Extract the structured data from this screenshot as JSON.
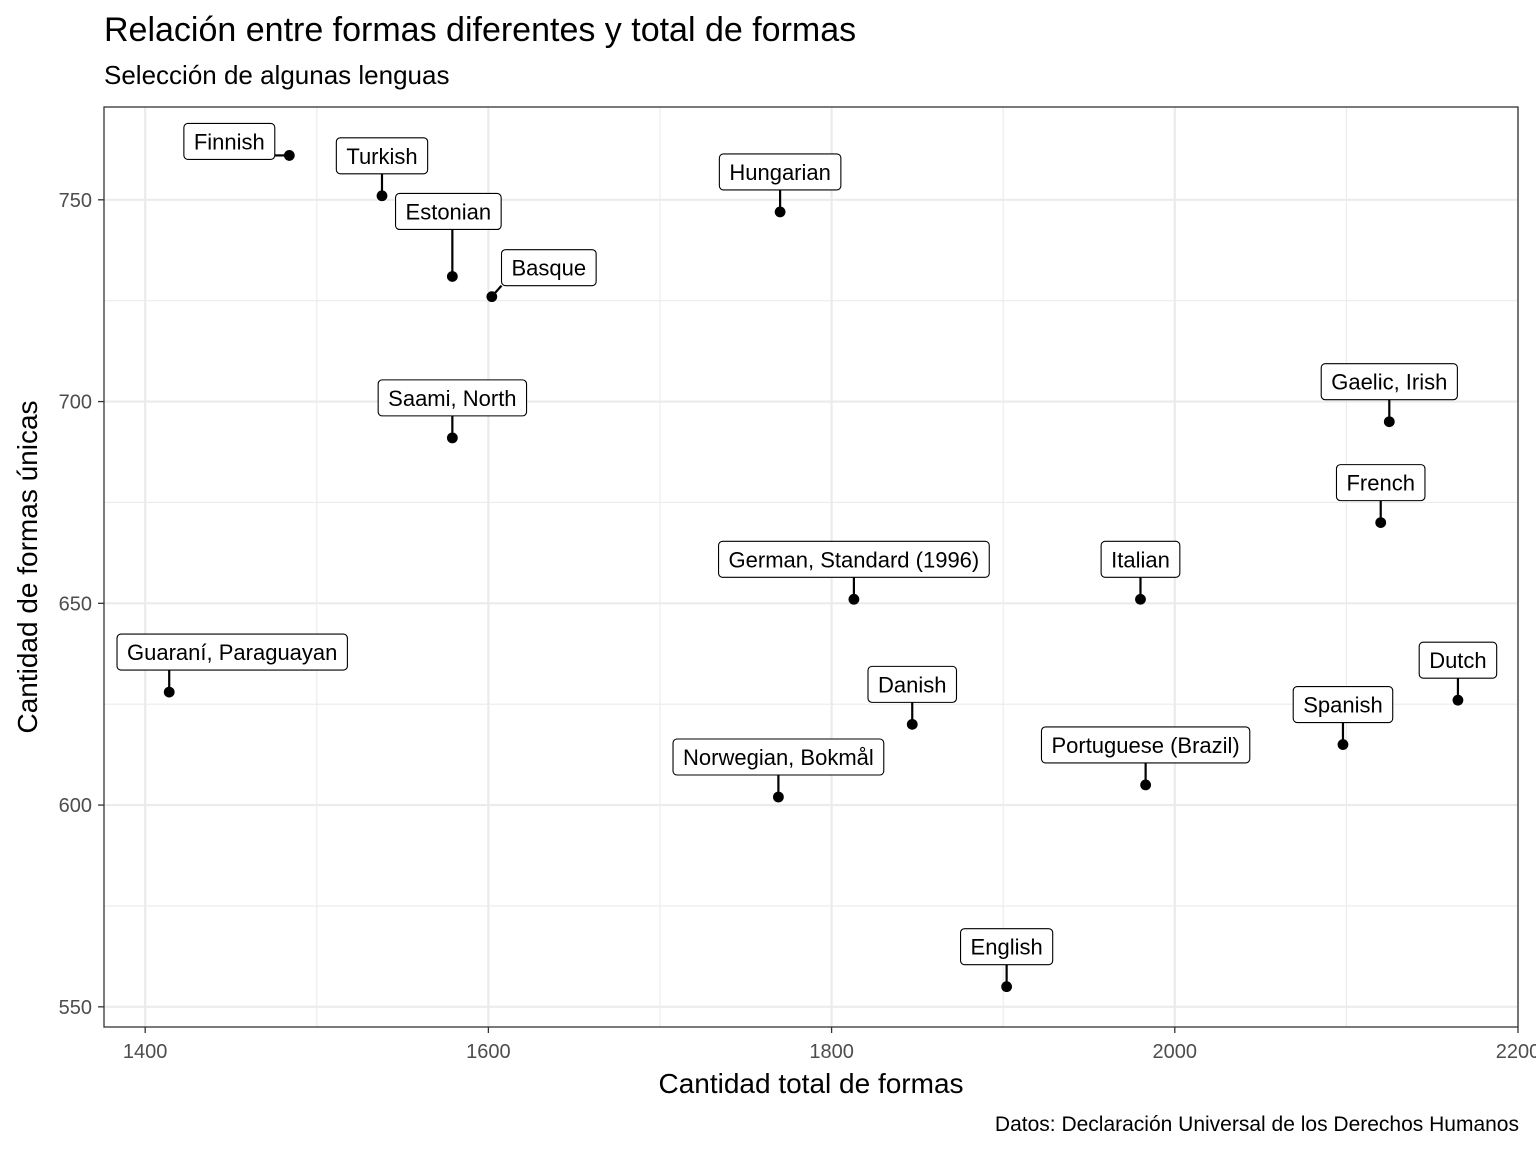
{
  "chart_data": {
    "type": "scatter",
    "title": "Relación entre formas diferentes y total de formas",
    "subtitle": "Selección de algunas lenguas",
    "xlabel": "Cantidad total de formas",
    "ylabel": "Cantidad de formas únicas",
    "caption": "Datos: Declaración Universal de los Derechos Humanos",
    "xlim": [
      1376,
      2200
    ],
    "ylim": [
      545,
      773
    ],
    "x_ticks": [
      "1400",
      "1600",
      "1800",
      "2000",
      "2200"
    ],
    "y_ticks": [
      "550",
      "600",
      "650",
      "700",
      "750"
    ],
    "grid": true,
    "points": [
      {
        "label": "Finnish",
        "x": 1484,
        "y": 761
      },
      {
        "label": "Turkish",
        "x": 1538,
        "y": 751
      },
      {
        "label": "Estonian",
        "x": 1579,
        "y": 731
      },
      {
        "label": "Basque",
        "x": 1602,
        "y": 726
      },
      {
        "label": "Hungarian",
        "x": 1770,
        "y": 747
      },
      {
        "label": "Saami, North",
        "x": 1579,
        "y": 691
      },
      {
        "label": "Gaelic, Irish",
        "x": 2125,
        "y": 695
      },
      {
        "label": "French",
        "x": 2120,
        "y": 670
      },
      {
        "label": "German, Standard (1996)",
        "x": 1813,
        "y": 651
      },
      {
        "label": "Italian",
        "x": 1980,
        "y": 651
      },
      {
        "label": "Guaraní, Paraguayan",
        "x": 1414,
        "y": 628
      },
      {
        "label": "Dutch",
        "x": 2165,
        "y": 626
      },
      {
        "label": "Danish",
        "x": 1847,
        "y": 620
      },
      {
        "label": "Spanish",
        "x": 2098,
        "y": 615
      },
      {
        "label": "Norwegian, Bokmål",
        "x": 1769,
        "y": 602
      },
      {
        "label": "Portuguese (Brazil)",
        "x": 1983,
        "y": 605
      },
      {
        "label": "English",
        "x": 1902,
        "y": 555
      }
    ]
  }
}
